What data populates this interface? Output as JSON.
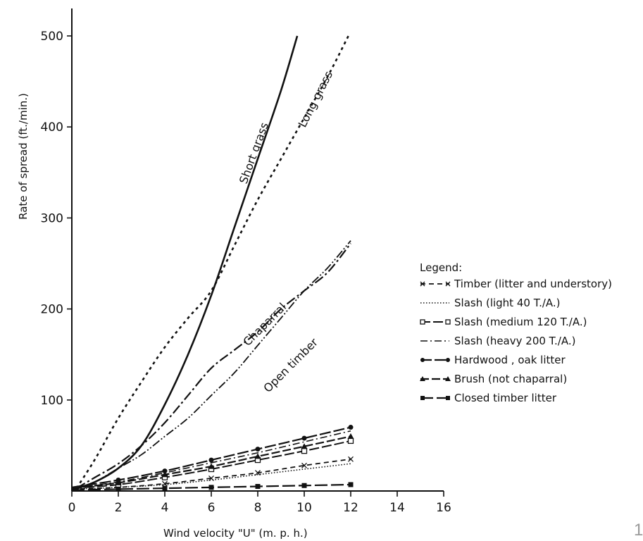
{
  "chart_data": {
    "type": "line",
    "xlabel": "Wind velocity \"U\" (m. p. h.)",
    "ylabel": "Rate of spread (ft./min.)",
    "xlim": [
      0,
      16
    ],
    "ylim": [
      0,
      500
    ],
    "x_ticks": [
      "0",
      "2",
      "4",
      "6",
      "8",
      "10",
      "12",
      "14",
      "16"
    ],
    "y_ticks": [
      "100",
      "200",
      "300",
      "400",
      "500"
    ],
    "grid": false,
    "legend_position": "right",
    "legend_title": "Legend:",
    "series": [
      {
        "name": "Short grass",
        "style": "solid",
        "x": [
          0.2,
          1,
          2,
          3,
          4,
          5,
          6,
          7,
          8,
          9,
          9.7
        ],
        "y": [
          3,
          10,
          25,
          50,
          95,
          150,
          215,
          290,
          365,
          440,
          500
        ]
      },
      {
        "name": "Long grass",
        "style": "dotted",
        "x": [
          0.2,
          1,
          2,
          3,
          4,
          5,
          6,
          7,
          8,
          9,
          10,
          11,
          11.9
        ],
        "y": [
          3,
          35,
          80,
          120,
          158,
          190,
          220,
          270,
          320,
          365,
          410,
          455,
          500
        ]
      },
      {
        "name": "Chaparral",
        "style": "dashdot",
        "x": [
          0.2,
          1,
          2,
          3,
          4,
          5,
          6,
          7,
          8,
          9,
          10,
          11,
          12
        ],
        "y": [
          3,
          15,
          30,
          50,
          75,
          105,
          135,
          155,
          175,
          200,
          220,
          240,
          272
        ]
      },
      {
        "name": "Open timber",
        "style": "dashdotdot",
        "x": [
          0.2,
          1,
          2,
          3,
          4,
          5,
          6,
          7,
          8,
          9,
          10,
          11,
          12
        ],
        "y": [
          2,
          10,
          25,
          40,
          60,
          80,
          105,
          130,
          160,
          190,
          220,
          245,
          275
        ]
      },
      {
        "name": "Timber (litter and understory)",
        "style": "dashed-x",
        "x": [
          0,
          2,
          4,
          6,
          8,
          10,
          12
        ],
        "y": [
          2,
          4,
          8,
          14,
          20,
          28,
          35
        ]
      },
      {
        "name": "Slash (light 40 T./A.)",
        "style": "fine-dotted",
        "x": [
          0,
          2,
          4,
          6,
          8,
          10,
          12
        ],
        "y": [
          2,
          4,
          7,
          12,
          18,
          24,
          30
        ]
      },
      {
        "name": "Slash (medium 120 T./A.)",
        "style": "open-square",
        "x": [
          0,
          2,
          4,
          6,
          8,
          10,
          12
        ],
        "y": [
          3,
          7,
          15,
          24,
          34,
          44,
          55
        ]
      },
      {
        "name": "Slash (heavy 200 T./A.)",
        "style": "dashdot-thin",
        "x": [
          0,
          2,
          4,
          6,
          8,
          10,
          12
        ],
        "y": [
          3,
          10,
          20,
          31,
          42,
          54,
          66
        ]
      },
      {
        "name": "Hardwood , oak litter",
        "style": "filled-circle",
        "x": [
          0,
          2,
          4,
          6,
          8,
          10,
          12
        ],
        "y": [
          4,
          12,
          22,
          34,
          46,
          58,
          70
        ]
      },
      {
        "name": "Brush (not chaparral)",
        "style": "triangle",
        "x": [
          0,
          2,
          4,
          6,
          8,
          10,
          12
        ],
        "y": [
          3,
          9,
          18,
          27,
          38,
          49,
          60
        ]
      },
      {
        "name": "Closed timber litter",
        "style": "filled-square",
        "x": [
          0,
          2,
          4,
          6,
          8,
          10,
          12
        ],
        "y": [
          1,
          2,
          3,
          4,
          5,
          6,
          7
        ]
      }
    ],
    "curve_labels": [
      "Short grass",
      "Long grass",
      "Chaparral",
      "Open timber"
    ],
    "page_number": "1"
  }
}
